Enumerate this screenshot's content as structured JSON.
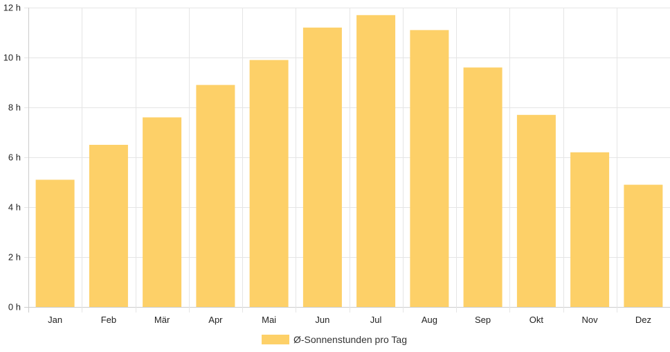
{
  "chart_data": {
    "type": "bar",
    "categories": [
      "Jan",
      "Feb",
      "Mär",
      "Apr",
      "Mai",
      "Jun",
      "Jul",
      "Aug",
      "Sep",
      "Okt",
      "Nov",
      "Dez"
    ],
    "series": [
      {
        "name": "Ø-Sonnenstunden pro Tag",
        "values": [
          5.1,
          6.5,
          7.6,
          8.9,
          9.9,
          11.2,
          11.7,
          11.1,
          9.6,
          7.7,
          6.2,
          4.9
        ],
        "color": "#fdd068"
      }
    ],
    "y_ticks": [
      0,
      2,
      4,
      6,
      8,
      10,
      12
    ],
    "y_unit": "h",
    "ylim": [
      0,
      12
    ],
    "grid": true,
    "legend_position": "bottom"
  },
  "colors": {
    "bar": "#fdd068",
    "grid": "#e5e5e5",
    "axis": "#cccccc",
    "text": "#222222"
  }
}
